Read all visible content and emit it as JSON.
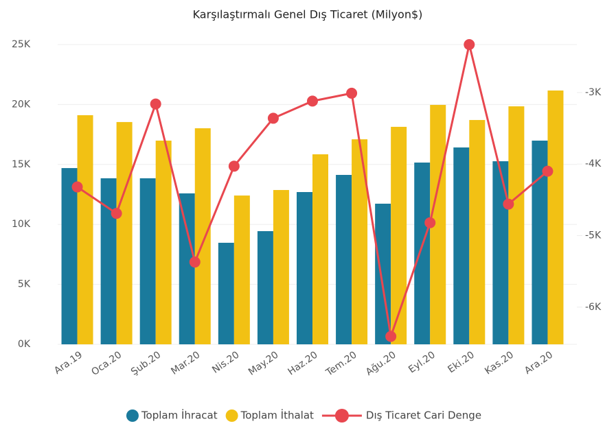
{
  "chart_data": {
    "type": "bar",
    "title": "Karşılaştırmalı Genel Dış Ticaret (Milyon$)",
    "categories": [
      "Ara.19",
      "Oca.20",
      "Şub.20",
      "Mar.20",
      "Nis.20",
      "May.20",
      "Haz.20",
      "Tem.20",
      "Ağu.20",
      "Eyl.20",
      "Eki.20",
      "Kas.20",
      "Ara.20"
    ],
    "series": [
      {
        "name": "Toplam İhracat",
        "color": "#1a7a9c",
        "values": [
          14700,
          13850,
          13850,
          12590,
          8470,
          9440,
          12700,
          14130,
          11730,
          15160,
          16420,
          15270,
          16990
        ]
      },
      {
        "name": "Toplam İthalat",
        "color": "#f2c114",
        "values": [
          19110,
          18540,
          16990,
          18020,
          12410,
          12870,
          15850,
          17100,
          18140,
          19970,
          18710,
          19850,
          21170
        ]
      },
      {
        "name": "Dış Ticaret Cari Denge",
        "color": "#e8474f",
        "type": "line",
        "axis": "y2",
        "values": [
          -4320,
          -4690,
          -3160,
          -5370,
          -4030,
          -3360,
          -3120,
          -3010,
          -6410,
          -4820,
          -2330,
          -4560,
          -4100
        ]
      }
    ],
    "ylim": [
      0,
      25000
    ],
    "yticks": [
      {
        "value": 0,
        "label": "0K"
      },
      {
        "value": 5000,
        "label": "5K"
      },
      {
        "value": 10000,
        "label": "10K"
      },
      {
        "value": 15000,
        "label": "15K"
      },
      {
        "value": 20000,
        "label": "20K"
      },
      {
        "value": 25000,
        "label": "25K"
      }
    ],
    "y2lim": [
      -6520,
      -2330
    ],
    "y2ticks": [
      {
        "value": -6000,
        "label": "-6K"
      },
      {
        "value": -5000,
        "label": "-5K"
      },
      {
        "value": -4000,
        "label": "-4K"
      },
      {
        "value": -3000,
        "label": "-3K"
      }
    ],
    "grid": true,
    "legend": "bottom"
  }
}
